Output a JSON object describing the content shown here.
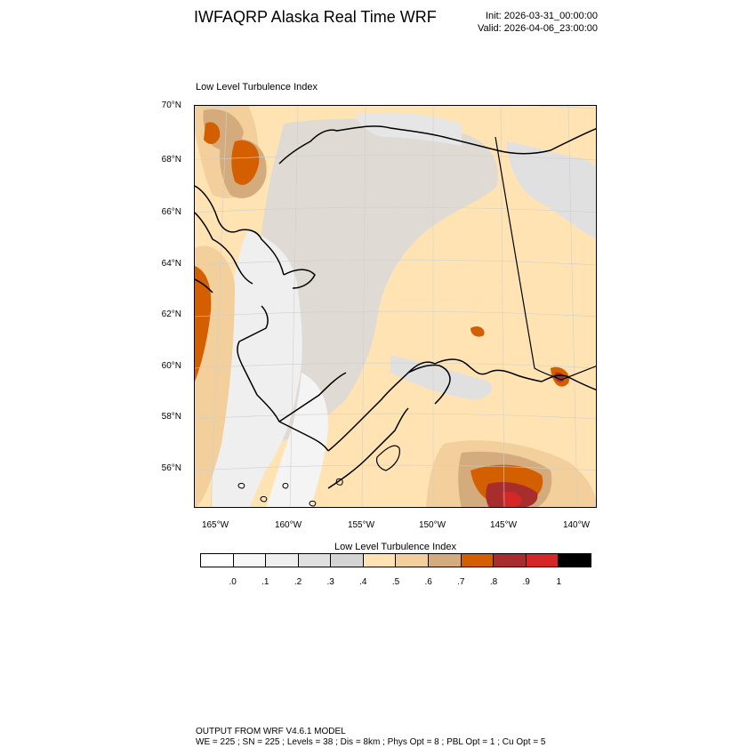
{
  "header": {
    "title": "IWFAQRP Alaska Real Time WRF",
    "init": "Init: 2026-03-31_00:00:00",
    "valid": "Valid: 2026-04-06_23:00:00"
  },
  "panel": {
    "title": "Low Level Turbulence Index"
  },
  "map": {
    "lat_labels": [
      "70°N",
      "68°N",
      "66°N",
      "64°N",
      "62°N",
      "60°N",
      "58°N",
      "56°N"
    ],
    "lon_labels": [
      "165°W",
      "160°W",
      "155°W",
      "150°W",
      "145°W",
      "140°W"
    ],
    "colors": {
      "ocean_gray": "#d9d9d9",
      "light_gray": "#efefef",
      "cream": "#ffe3b3",
      "tan": "#f2cf9b",
      "brown": "#d4ab7d",
      "orange": "#d45f00",
      "red": "#a82e2e",
      "bright_red": "#d62728",
      "coast": "#000000"
    }
  },
  "colorbar": {
    "title": "Low Level Turbulence Index",
    "colors": [
      "#ffffff",
      "#f7f7f7",
      "#efefef",
      "#e0e0e0",
      "#d4d4d4",
      "#ffe3b3",
      "#f2cf9b",
      "#d4ab7d",
      "#d45f00",
      "#a82e2e",
      "#d62728",
      "#000000"
    ],
    "labels": [
      ".0",
      ".1",
      ".2",
      ".3",
      ".4",
      ".5",
      ".6",
      ".7",
      ".8",
      ".9",
      "1"
    ]
  },
  "footer": {
    "line1": "OUTPUT FROM WRF V4.6.1 MODEL",
    "line2": "WE = 225 ; SN = 225 ; Levels = 38 ; Dis = 8km ; Phys Opt = 8 ; PBL Opt = 1 ; Cu Opt = 5"
  }
}
